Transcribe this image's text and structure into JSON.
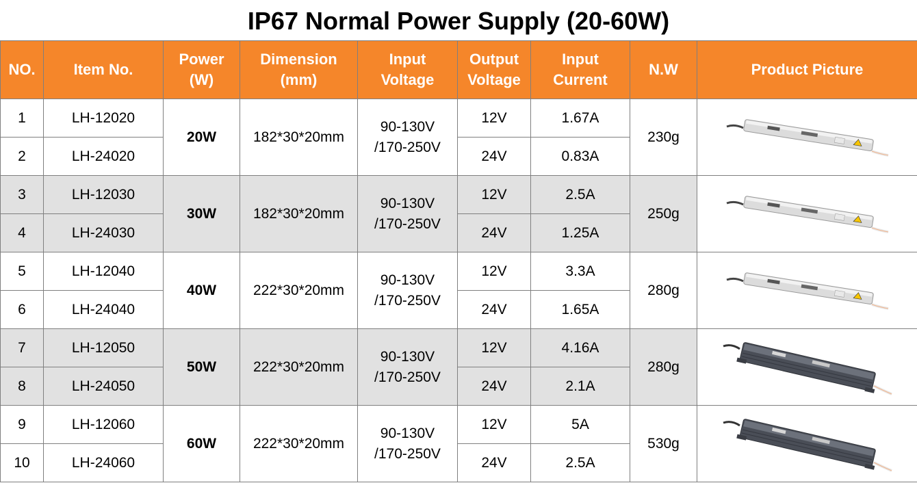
{
  "title": "IP67 Normal Power Supply (20-60W)",
  "headers": {
    "no": "NO.",
    "item": "Item No.",
    "power_l1": "Power",
    "power_l2": "(W)",
    "dim_l1": "Dimension",
    "dim_l2": "(mm)",
    "in_l1": "Input",
    "in_l2": "Voltage",
    "out_l1": "Output",
    "out_l2": "Voltage",
    "cur_l1": "Input",
    "cur_l2": "Current",
    "nw": "N.W",
    "pic": "Product Picture"
  },
  "groups": [
    {
      "power": "20W",
      "dimension": "182*30*20mm",
      "input_l1": "90-130V",
      "input_l2": "/170-250V",
      "nw": "230g",
      "picture": "silver-power-supply-image",
      "rows": [
        {
          "no": "1",
          "item": "LH-12020",
          "output": "12V",
          "current": "1.67A"
        },
        {
          "no": "2",
          "item": "LH-24020",
          "output": "24V",
          "current": "0.83A"
        }
      ]
    },
    {
      "power": "30W",
      "dimension": "182*30*20mm",
      "input_l1": "90-130V",
      "input_l2": "/170-250V",
      "nw": "250g",
      "picture": "silver-power-supply-image",
      "rows": [
        {
          "no": "3",
          "item": "LH-12030",
          "output": "12V",
          "current": "2.5A"
        },
        {
          "no": "4",
          "item": "LH-24030",
          "output": "24V",
          "current": "1.25A"
        }
      ]
    },
    {
      "power": "40W",
      "dimension": "222*30*20mm",
      "input_l1": "90-130V",
      "input_l2": "/170-250V",
      "nw": "280g",
      "picture": "silver-power-supply-image",
      "rows": [
        {
          "no": "5",
          "item": "LH-12040",
          "output": "12V",
          "current": "3.3A"
        },
        {
          "no": "6",
          "item": "LH-24040",
          "output": "24V",
          "current": "1.65A"
        }
      ]
    },
    {
      "power": "50W",
      "dimension": "222*30*20mm",
      "input_l1": "90-130V",
      "input_l2": "/170-250V",
      "nw": "280g",
      "picture": "dark-power-supply-image",
      "rows": [
        {
          "no": "7",
          "item": "LH-12050",
          "output": "12V",
          "current": "4.16A"
        },
        {
          "no": "8",
          "item": "LH-24050",
          "output": "24V",
          "current": "2.1A"
        }
      ]
    },
    {
      "power": "60W",
      "dimension": "222*30*20mm",
      "input_l1": "90-130V",
      "input_l2": "/170-250V",
      "nw": "530g",
      "picture": "dark-power-supply-image",
      "rows": [
        {
          "no": "9",
          "item": "LH-12060",
          "output": "12V",
          "current": "5A"
        },
        {
          "no": "10",
          "item": "LH-24060",
          "output": "24V",
          "current": "2.5A"
        }
      ]
    }
  ],
  "colors": {
    "header_bg": "#f5862a",
    "header_text": "#ffffff",
    "stripe_gray": "#e1e1e1",
    "border": "#7f7f7f"
  }
}
